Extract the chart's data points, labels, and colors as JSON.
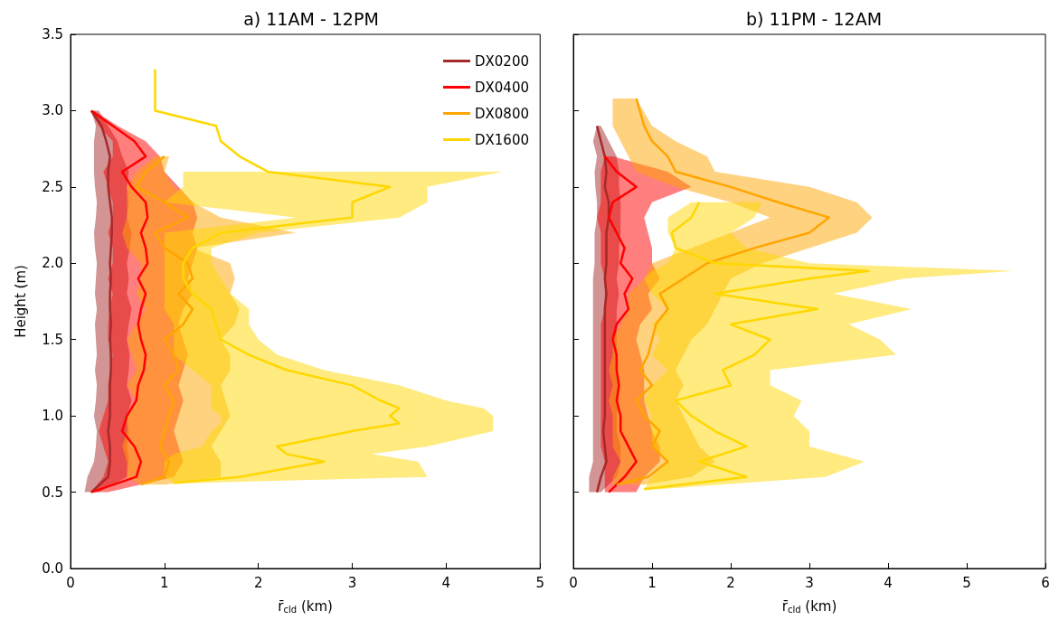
{
  "chart_data": [
    {
      "type": "line",
      "title": "a) 11AM - 12PM",
      "xlabel": "r̄$_{cld}$ (km)",
      "ylabel": "Height (m)",
      "orientation": "horizontal",
      "xlim": [
        0,
        5
      ],
      "xticks": [
        0,
        1,
        2,
        3,
        4,
        5
      ],
      "ylim": [
        0,
        3.5
      ],
      "yticks": [
        {
          "value": 0,
          "label": "0.0"
        },
        0.5,
        {
          "value": 1,
          "label": "1.0"
        },
        1.5,
        {
          "value": 2,
          "label": "2.0"
        },
        2.5,
        {
          "value": 3,
          "label": "3.0"
        },
        3.5
      ],
      "legend": "top right",
      "grid": false,
      "marker": "none",
      "line_style": "solid",
      "series": [
        {
          "name": "DX0200",
          "color": "#a52a2a",
          "x": [
            0.5,
            0.6,
            0.7,
            0.8,
            0.9,
            1.0,
            1.1,
            1.2,
            1.3,
            1.4,
            1.5,
            1.6,
            1.7,
            1.8,
            1.9,
            2.0,
            2.1,
            2.2,
            2.3,
            2.4,
            2.5,
            2.6,
            2.7,
            2.8,
            2.9,
            3.0
          ],
          "values": [
            0.22,
            0.4,
            0.42,
            0.42,
            0.4,
            0.42,
            0.42,
            0.42,
            0.43,
            0.43,
            0.42,
            0.43,
            0.42,
            0.42,
            0.43,
            0.42,
            0.43,
            0.44,
            0.44,
            0.42,
            0.4,
            0.4,
            0.42,
            0.38,
            0.33,
            0.22
          ],
          "lower": [
            0.15,
            0.18,
            0.25,
            0.27,
            0.28,
            0.25,
            0.27,
            0.28,
            0.26,
            0.28,
            0.27,
            0.26,
            0.28,
            0.26,
            0.27,
            0.28,
            0.26,
            0.25,
            0.27,
            0.28,
            0.26,
            0.25,
            0.25,
            0.25,
            0.27,
            0.22
          ],
          "upper": [
            0.3,
            0.6,
            0.62,
            0.6,
            0.62,
            0.6,
            0.65,
            0.6,
            0.62,
            0.63,
            0.6,
            0.62,
            0.65,
            0.6,
            0.62,
            0.6,
            0.63,
            0.65,
            0.6,
            0.62,
            0.6,
            0.62,
            0.55,
            0.5,
            0.4,
            0.3
          ]
        },
        {
          "name": "DX0400",
          "color": "#ff0000",
          "x": [
            0.5,
            0.6,
            0.7,
            0.8,
            0.9,
            1.0,
            1.1,
            1.2,
            1.3,
            1.4,
            1.5,
            1.6,
            1.7,
            1.8,
            1.9,
            2.0,
            2.1,
            2.2,
            2.3,
            2.4,
            2.5,
            2.6,
            2.7,
            2.8,
            2.9,
            3.0
          ],
          "values": [
            0.22,
            0.7,
            0.75,
            0.68,
            0.55,
            0.6,
            0.7,
            0.72,
            0.78,
            0.8,
            0.75,
            0.72,
            0.75,
            0.8,
            0.72,
            0.82,
            0.8,
            0.75,
            0.82,
            0.8,
            0.65,
            0.55,
            0.8,
            0.68,
            0.45,
            0.22
          ],
          "lower": [
            0.22,
            0.35,
            0.4,
            0.35,
            0.3,
            0.35,
            0.4,
            0.4,
            0.42,
            0.45,
            0.4,
            0.4,
            0.42,
            0.45,
            0.4,
            0.45,
            0.45,
            0.4,
            0.45,
            0.45,
            0.4,
            0.35,
            0.45,
            0.45,
            0.3,
            0.22
          ],
          "upper": [
            0.4,
            1.1,
            1.2,
            1.15,
            1.1,
            1.15,
            1.2,
            1.15,
            1.2,
            1.25,
            1.2,
            1.15,
            1.2,
            1.3,
            1.25,
            1.3,
            1.35,
            1.3,
            1.35,
            1.3,
            1.15,
            1.0,
            0.95,
            0.8,
            0.5,
            0.25
          ]
        },
        {
          "name": "DX0800",
          "color": "#ffa500",
          "x": [
            0.55,
            0.6,
            0.7,
            0.8,
            0.9,
            1.0,
            1.1,
            1.2,
            1.3,
            1.4,
            1.5,
            1.6,
            1.7,
            1.8,
            1.9,
            2.0,
            2.1,
            2.2,
            2.3,
            2.4,
            2.5,
            2.6,
            2.7
          ],
          "values": [
            0.75,
            1.0,
            1.05,
            0.95,
            1.0,
            1.05,
            1.1,
            1.0,
            1.15,
            1.1,
            1.0,
            1.2,
            1.3,
            1.15,
            1.3,
            1.25,
            1.0,
            0.9,
            1.25,
            1.0,
            0.7,
            0.8,
            1.0
          ],
          "lower": [
            0.75,
            0.6,
            0.6,
            0.55,
            0.6,
            0.6,
            0.7,
            0.6,
            0.7,
            0.65,
            0.6,
            0.7,
            0.8,
            0.7,
            0.75,
            0.75,
            0.6,
            0.55,
            0.6,
            0.6,
            0.6,
            0.7,
            0.9
          ],
          "upper": [
            1.0,
            1.6,
            1.6,
            1.5,
            1.6,
            1.7,
            1.65,
            1.6,
            1.7,
            1.7,
            1.6,
            1.75,
            1.8,
            1.7,
            1.75,
            1.7,
            1.3,
            2.4,
            1.6,
            1.3,
            1.1,
            1.0,
            1.05
          ]
        },
        {
          "name": "DX1600",
          "color": "#ffd700",
          "x": [
            0.56,
            0.6,
            0.7,
            0.75,
            0.8,
            0.9,
            0.95,
            1.0,
            1.05,
            1.1,
            1.2,
            1.3,
            1.4,
            1.5,
            1.6,
            1.7,
            1.8,
            1.9,
            2.0,
            2.1,
            2.2,
            2.3,
            2.4,
            2.5,
            2.6,
            2.7,
            2.8,
            2.9,
            3.0,
            3.27
          ],
          "values": [
            1.1,
            1.8,
            2.7,
            2.3,
            2.2,
            3.0,
            3.5,
            3.4,
            3.5,
            3.3,
            3.0,
            2.3,
            1.9,
            1.6,
            1.55,
            1.5,
            1.3,
            1.2,
            1.2,
            1.3,
            1.6,
            3.0,
            3.0,
            3.4,
            2.1,
            1.8,
            1.6,
            1.55,
            0.9,
            0.9
          ],
          "lower": [
            1.1,
            1.0,
            1.0,
            1.1,
            1.4,
            1.5,
            1.6,
            1.6,
            1.5,
            1.5,
            1.5,
            1.3,
            1.1,
            1.1,
            1.1,
            1.0,
            1.0,
            1.0,
            1.0,
            1.0,
            1.0,
            2.4,
            1.0,
            1.2,
            1.2,
            null,
            null,
            null,
            null,
            null
          ],
          "upper": [
            1.3,
            3.8,
            3.7,
            3.2,
            3.8,
            4.5,
            4.5,
            4.5,
            4.4,
            4.0,
            3.5,
            2.7,
            2.2,
            2.0,
            1.9,
            1.9,
            1.7,
            1.6,
            1.5,
            1.5,
            2.0,
            3.5,
            3.8,
            3.8,
            4.6,
            null,
            null,
            null,
            null,
            null
          ]
        }
      ]
    },
    {
      "type": "line",
      "title": "b) 11PM - 12AM",
      "xlabel": "r̄$_{cld}$ (km)",
      "orientation": "horizontal",
      "xlim": [
        0,
        6
      ],
      "xticks": [
        0,
        1,
        2,
        3,
        4,
        5,
        6
      ],
      "ylim": [
        0,
        3.5
      ],
      "yticks": [
        0.0,
        0.5,
        1.0,
        1.5,
        2.0,
        2.5,
        3.0,
        3.5
      ],
      "tick_labels": "x",
      "grid": false,
      "marker": "none",
      "line_style": "solid",
      "series": [
        {
          "color": "#a52a2a",
          "x": [
            0.5,
            0.6,
            0.7,
            0.8,
            0.9,
            1.0,
            1.1,
            1.2,
            1.3,
            1.4,
            1.5,
            1.6,
            1.7,
            1.8,
            1.9,
            2.0,
            2.1,
            2.2,
            2.3,
            2.4,
            2.5,
            2.6,
            2.7,
            2.8,
            2.9
          ],
          "values": [
            0.3,
            0.35,
            0.42,
            0.4,
            0.38,
            0.4,
            0.4,
            0.4,
            0.4,
            0.4,
            0.4,
            0.4,
            0.4,
            0.42,
            0.4,
            0.42,
            0.42,
            0.42,
            0.45,
            0.45,
            0.4,
            0.42,
            0.4,
            0.35,
            0.3
          ],
          "lower": [
            0.2,
            0.2,
            0.25,
            0.25,
            0.25,
            0.25,
            0.25,
            0.25,
            0.25,
            0.25,
            0.25,
            0.25,
            0.25,
            0.25,
            0.25,
            0.27,
            0.27,
            0.27,
            0.3,
            0.3,
            0.28,
            0.27,
            0.3,
            0.25,
            0.3
          ],
          "upper": [
            0.35,
            0.55,
            0.6,
            0.6,
            0.55,
            0.55,
            0.58,
            0.58,
            0.55,
            0.55,
            0.55,
            0.55,
            0.55,
            0.58,
            0.55,
            0.58,
            0.58,
            0.6,
            0.6,
            0.6,
            0.58,
            0.58,
            0.55,
            0.45,
            0.35
          ]
        },
        {
          "color": "#ff0000",
          "x": [
            0.5,
            0.6,
            0.7,
            0.8,
            0.9,
            1.0,
            1.1,
            1.2,
            1.3,
            1.4,
            1.5,
            1.6,
            1.7,
            1.8,
            1.9,
            2.0,
            2.1,
            2.2,
            2.3,
            2.4,
            2.5,
            2.6,
            2.7
          ],
          "values": [
            0.45,
            0.65,
            0.8,
            0.7,
            0.6,
            0.6,
            0.55,
            0.58,
            0.55,
            0.55,
            0.5,
            0.55,
            0.7,
            0.65,
            0.75,
            0.6,
            0.65,
            0.55,
            0.45,
            0.5,
            0.8,
            0.55,
            0.4
          ],
          "lower": [
            0.4,
            0.4,
            0.4,
            0.35,
            0.35,
            0.35,
            0.35,
            0.35,
            0.35,
            0.35,
            0.35,
            0.35,
            0.4,
            0.4,
            0.4,
            0.35,
            0.35,
            0.35,
            0.3,
            0.35,
            0.35,
            0.35,
            0.4
          ],
          "upper": [
            0.8,
            0.9,
            1.1,
            1.1,
            1.0,
            0.95,
            0.9,
            0.9,
            0.9,
            0.85,
            0.8,
            0.85,
            1.0,
            0.95,
            1.1,
            1.0,
            1.0,
            0.95,
            0.9,
            1.0,
            1.5,
            1.2,
            0.5
          ]
        },
        {
          "color": "#ffa500",
          "x": [
            0.55,
            0.6,
            0.7,
            0.8,
            0.9,
            1.0,
            1.1,
            1.2,
            1.3,
            1.4,
            1.5,
            1.6,
            1.7,
            1.8,
            1.9,
            2.0,
            2.1,
            2.2,
            2.3,
            2.4,
            2.5,
            2.6,
            2.7,
            2.8,
            2.9,
            3.08
          ],
          "values": [
            0.55,
            0.95,
            1.2,
            1.0,
            1.1,
            0.9,
            0.8,
            1.0,
            0.85,
            0.95,
            1.0,
            1.05,
            1.2,
            1.1,
            1.4,
            1.7,
            2.3,
            3.0,
            3.25,
            2.6,
            2.0,
            1.3,
            1.2,
            1.0,
            0.9,
            0.8
          ],
          "lower": [
            0.5,
            0.5,
            0.6,
            0.5,
            0.5,
            0.5,
            0.45,
            0.5,
            0.45,
            0.5,
            0.5,
            0.6,
            0.7,
            0.7,
            0.9,
            1.0,
            1.5,
            2.0,
            2.5,
            2.0,
            1.3,
            0.8,
            0.7,
            0.6,
            0.5,
            0.5
          ],
          "upper": [
            0.9,
            1.5,
            1.8,
            1.6,
            1.5,
            1.4,
            1.3,
            1.4,
            1.3,
            1.4,
            1.5,
            1.7,
            1.8,
            1.9,
            2.0,
            2.4,
            3.0,
            3.6,
            3.8,
            3.6,
            3.0,
            1.8,
            1.7,
            1.3,
            1.0,
            0.8
          ]
        },
        {
          "color": "#ffd700",
          "x": [
            0.52,
            0.6,
            0.7,
            0.8,
            0.9,
            1.0,
            1.1,
            1.2,
            1.3,
            1.4,
            1.5,
            1.6,
            1.7,
            1.8,
            1.9,
            1.95,
            2.0,
            2.1,
            2.2,
            2.3,
            2.4
          ],
          "values": [
            0.9,
            2.2,
            1.6,
            2.2,
            1.8,
            1.5,
            1.3,
            2.0,
            1.9,
            2.3,
            2.5,
            2.0,
            3.1,
            1.8,
            3.0,
            3.75,
            1.8,
            1.3,
            1.25,
            1.5,
            1.6
          ],
          "lower": [
            0.9,
            1.0,
            1.2,
            1.0,
            1.0,
            1.0,
            0.9,
            1.0,
            1.2,
            1.0,
            1.1,
            1.0,
            1.2,
            1.0,
            0.9,
            1.0,
            1.2,
            1.3,
            1.2,
            1.2,
            1.5
          ],
          "upper": [
            1.1,
            3.2,
            3.7,
            3.0,
            3.0,
            2.8,
            2.9,
            2.5,
            2.5,
            4.1,
            3.9,
            3.5,
            4.3,
            3.3,
            4.2,
            5.6,
            3.0,
            2.2,
            2.0,
            2.3,
            2.4
          ]
        }
      ]
    }
  ]
}
